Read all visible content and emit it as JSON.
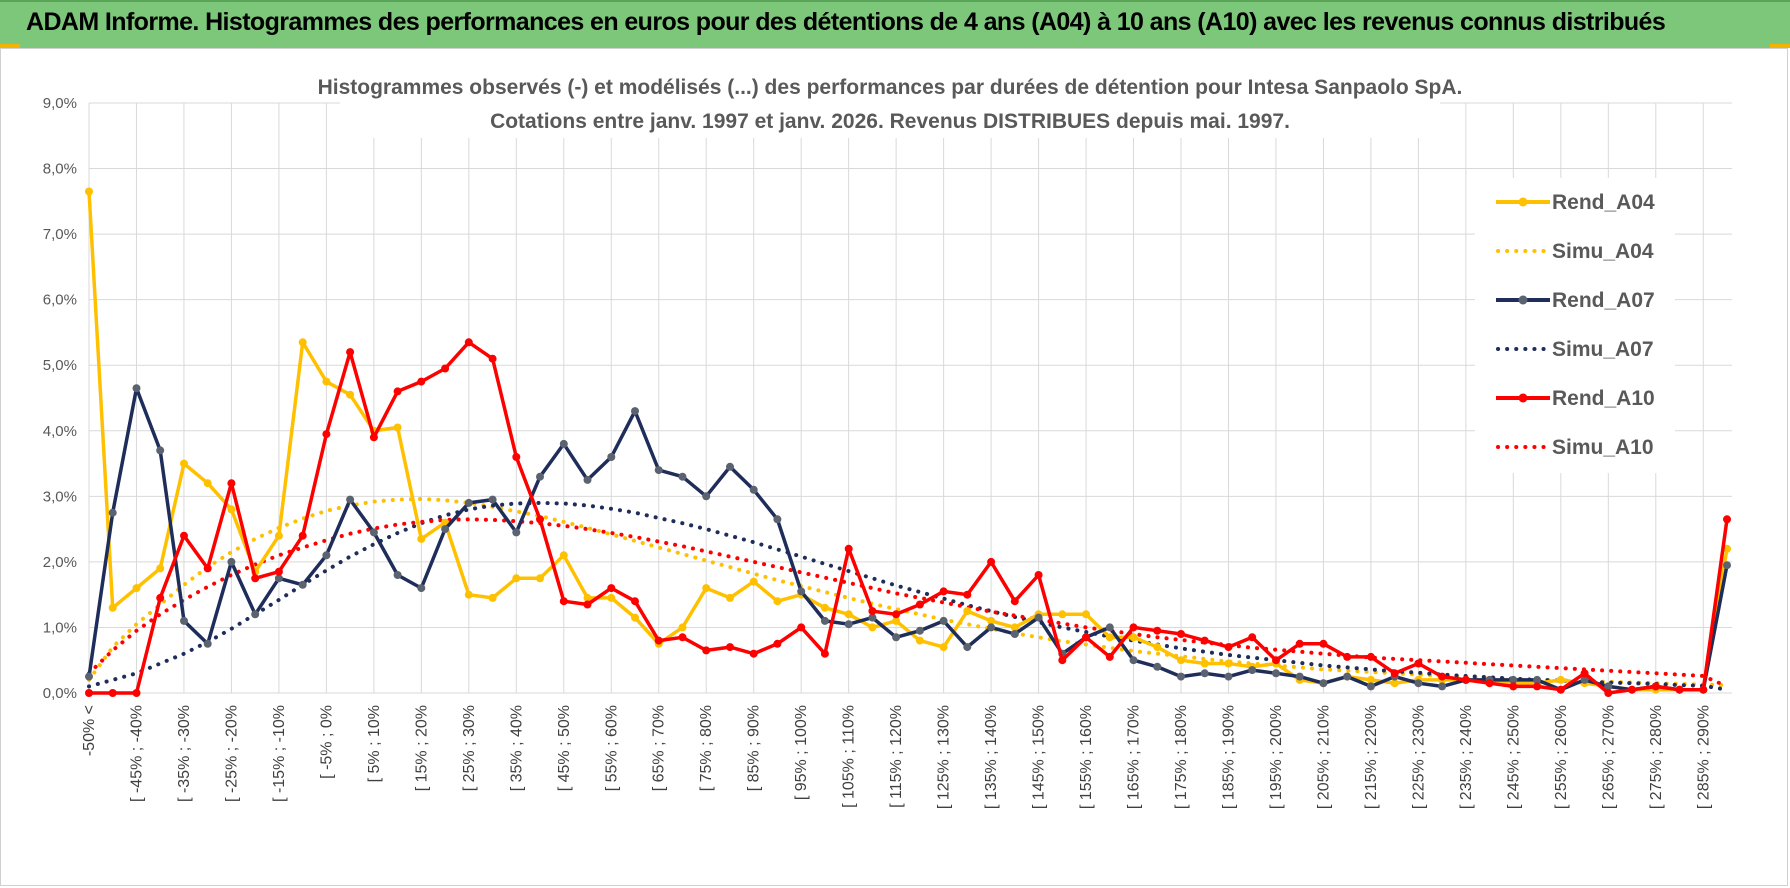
{
  "banner": {
    "title": "ADAM Informe. Histogrammes des performances en euros pour des détentions de 4 ans (A04) à 10 ans (A10) avec les revenus connus distribués",
    "color": "#7dc77b"
  },
  "chart_data": {
    "type": "line",
    "title": [
      "Histogrammes observés (-) et modélisés (...) des performances par durées de détention pour Intesa Sanpaolo SpA.",
      "Cotations entre janv. 1997 et janv. 2026. Revenus DISTRIBUES depuis mai. 1997."
    ],
    "xlabel": "",
    "ylabel": "",
    "ylim": [
      0,
      9
    ],
    "y_ticks": [
      "0,0%",
      "1,0%",
      "2,0%",
      "3,0%",
      "4,0%",
      "5,0%",
      "6,0%",
      "7,0%",
      "8,0%",
      "9,0%"
    ],
    "y_tick_values": [
      0,
      1,
      2,
      3,
      4,
      5,
      6,
      7,
      8,
      9
    ],
    "grid": true,
    "legend_position": "top-right",
    "x_tick_labels": [
      "-50% <",
      "[ -45% ; -40%",
      "[ -35% ; -30%",
      "[ -25% ; -20%",
      "[ -15% ; -10%",
      "[ -5% ; 0%",
      "[ 5% ; 10%",
      "[ 15% ; 20%",
      "[ 25% ; 30%",
      "[ 35% ; 40%",
      "[ 45% ; 50%",
      "[ 55% ; 60%",
      "[ 65% ; 70%",
      "[ 75% ; 80%",
      "[ 85% ; 90%",
      "[ 95% ; 100%",
      "[ 105% ; 110%",
      "[ 115% ; 120%",
      "[ 125% ; 130%",
      "[ 135% ; 140%",
      "[ 145% ; 150%",
      "[ 155% ; 160%",
      "[ 165% ; 170%",
      "[ 175% ; 180%",
      "[ 185% ; 190%",
      "[ 195% ; 200%",
      "[ 205% ; 210%",
      "[ 215% ; 220%",
      "[ 225% ; 230%",
      "[ 235% ; 240%",
      "[ 245% ; 250%",
      "[ 255% ; 260%",
      "[ 265% ; 270%",
      "[ 275% ; 280%",
      "[ 285% ; 290%"
    ],
    "x_tick_positions": [
      0,
      2,
      4,
      6,
      8,
      10,
      12,
      14,
      16,
      18,
      20,
      22,
      24,
      26,
      28,
      30,
      32,
      34,
      36,
      38,
      40,
      42,
      44,
      46,
      48,
      50,
      52,
      54,
      56,
      58,
      60,
      62,
      64,
      66,
      68
    ],
    "n_categories": 70,
    "series": [
      {
        "name": "Rend_A04",
        "style": "solid",
        "color": "#ffc000",
        "values": [
          7.65,
          1.3,
          1.6,
          1.9,
          3.5,
          3.2,
          2.8,
          1.85,
          2.4,
          5.35,
          4.75,
          4.55,
          4.0,
          4.05,
          2.35,
          2.6,
          1.5,
          1.45,
          1.75,
          1.75,
          2.1,
          1.45,
          1.45,
          1.15,
          0.75,
          1.0,
          1.6,
          1.45,
          1.7,
          1.4,
          1.5,
          1.3,
          1.2,
          1.0,
          1.1,
          0.8,
          0.7,
          1.25,
          1.1,
          1.0,
          1.2,
          1.2,
          1.2,
          0.85,
          0.85,
          0.7,
          0.5,
          0.45,
          0.45,
          0.4,
          0.45,
          0.2,
          0.15,
          0.25,
          0.2,
          0.15,
          0.2,
          0.2,
          0.2,
          0.15,
          0.15,
          0.15,
          0.2,
          0.15,
          0.1,
          0.05,
          0.05,
          0.05,
          0.05,
          2.2
        ]
      },
      {
        "name": "Simu_A04",
        "style": "dotted",
        "color": "#ffc000",
        "values": [
          0.2,
          0.7,
          1.05,
          1.35,
          1.65,
          1.92,
          2.15,
          2.35,
          2.52,
          2.66,
          2.78,
          2.86,
          2.92,
          2.95,
          2.96,
          2.94,
          2.9,
          2.84,
          2.77,
          2.7,
          2.61,
          2.52,
          2.42,
          2.32,
          2.22,
          2.12,
          2.02,
          1.92,
          1.82,
          1.72,
          1.63,
          1.54,
          1.45,
          1.36,
          1.28,
          1.2,
          1.12,
          1.05,
          0.98,
          0.91,
          0.85,
          0.79,
          0.74,
          0.69,
          0.64,
          0.6,
          0.56,
          0.52,
          0.48,
          0.45,
          0.42,
          0.39,
          0.36,
          0.34,
          0.32,
          0.3,
          0.28,
          0.26,
          0.24,
          0.23,
          0.21,
          0.2,
          0.19,
          0.18,
          0.17,
          0.16,
          0.15,
          0.14,
          0.13,
          0.12
        ]
      },
      {
        "name": "Rend_A07",
        "style": "solid",
        "color": "#1f2d5a",
        "values": [
          0.25,
          2.75,
          4.65,
          3.7,
          1.1,
          0.75,
          2.0,
          1.2,
          1.75,
          1.65,
          2.1,
          2.95,
          2.45,
          1.8,
          1.6,
          2.5,
          2.9,
          2.95,
          2.45,
          3.3,
          3.8,
          3.25,
          3.6,
          4.3,
          3.4,
          3.3,
          3.0,
          3.45,
          3.1,
          2.65,
          1.55,
          1.1,
          1.05,
          1.15,
          0.85,
          0.95,
          1.1,
          0.7,
          1.0,
          0.9,
          1.15,
          0.6,
          0.85,
          1.0,
          0.5,
          0.4,
          0.25,
          0.3,
          0.25,
          0.35,
          0.3,
          0.25,
          0.15,
          0.25,
          0.1,
          0.25,
          0.15,
          0.1,
          0.2,
          0.2,
          0.2,
          0.2,
          0.05,
          0.2,
          0.1,
          0.05,
          0.1,
          0.05,
          0.05,
          1.95
        ]
      },
      {
        "name": "Simu_A07",
        "style": "dotted",
        "color": "#1f2d5a",
        "values": [
          0.1,
          0.2,
          0.3,
          0.45,
          0.6,
          0.78,
          0.98,
          1.2,
          1.42,
          1.65,
          1.87,
          2.08,
          2.27,
          2.44,
          2.59,
          2.71,
          2.8,
          2.86,
          2.89,
          2.9,
          2.89,
          2.86,
          2.81,
          2.75,
          2.67,
          2.59,
          2.5,
          2.4,
          2.3,
          2.19,
          2.08,
          1.97,
          1.86,
          1.75,
          1.64,
          1.54,
          1.44,
          1.34,
          1.25,
          1.16,
          1.08,
          1.0,
          0.93,
          0.86,
          0.8,
          0.74,
          0.68,
          0.63,
          0.58,
          0.54,
          0.5,
          0.46,
          0.42,
          0.39,
          0.36,
          0.33,
          0.31,
          0.28,
          0.26,
          0.24,
          0.22,
          0.2,
          0.19,
          0.17,
          0.16,
          0.15,
          0.14,
          0.12,
          0.11,
          0.05
        ]
      },
      {
        "name": "Rend_A10",
        "style": "solid",
        "color": "#ff0000",
        "values": [
          0.0,
          0.0,
          0.0,
          1.45,
          2.4,
          1.9,
          3.2,
          1.75,
          1.85,
          2.4,
          3.95,
          5.2,
          3.9,
          4.6,
          4.75,
          4.95,
          5.35,
          5.1,
          3.6,
          2.65,
          1.4,
          1.35,
          1.6,
          1.4,
          0.8,
          0.85,
          0.65,
          0.7,
          0.6,
          0.75,
          1.0,
          0.6,
          2.2,
          1.25,
          1.2,
          1.35,
          1.55,
          1.5,
          2.0,
          1.4,
          1.8,
          0.5,
          0.85,
          0.55,
          1.0,
          0.95,
          0.9,
          0.8,
          0.7,
          0.85,
          0.5,
          0.75,
          0.75,
          0.55,
          0.55,
          0.3,
          0.45,
          0.25,
          0.2,
          0.15,
          0.1,
          0.1,
          0.05,
          0.3,
          0.0,
          0.05,
          0.1,
          0.05,
          0.05,
          2.65
        ]
      },
      {
        "name": "Simu_A10",
        "style": "dotted",
        "color": "#ff0000",
        "values": [
          0.3,
          0.65,
          0.95,
          1.2,
          1.42,
          1.62,
          1.8,
          1.96,
          2.1,
          2.22,
          2.33,
          2.43,
          2.51,
          2.57,
          2.61,
          2.64,
          2.65,
          2.64,
          2.62,
          2.59,
          2.55,
          2.5,
          2.44,
          2.38,
          2.31,
          2.24,
          2.16,
          2.08,
          2.0,
          1.92,
          1.84,
          1.76,
          1.68,
          1.6,
          1.52,
          1.45,
          1.38,
          1.31,
          1.24,
          1.18,
          1.12,
          1.06,
          1.0,
          0.95,
          0.9,
          0.85,
          0.81,
          0.77,
          0.73,
          0.69,
          0.66,
          0.63,
          0.6,
          0.57,
          0.54,
          0.52,
          0.5,
          0.48,
          0.46,
          0.44,
          0.42,
          0.4,
          0.38,
          0.36,
          0.34,
          0.32,
          0.3,
          0.28,
          0.26,
          0.1
        ]
      }
    ]
  }
}
